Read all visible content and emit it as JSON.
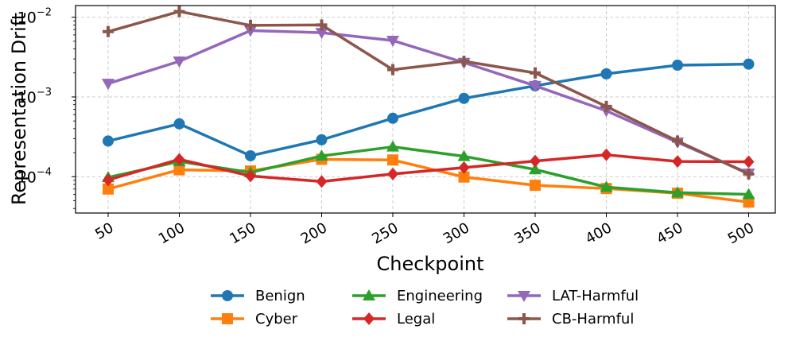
{
  "chart_data": {
    "type": "line",
    "title": "",
    "xlabel": "Checkpoint",
    "ylabel": "Representation Drift",
    "yscale": "log",
    "ylim": [
      3.5e-05,
      0.014
    ],
    "ytick_labels": [
      {
        "base": "10",
        "exp": "−2",
        "value": 0.01
      },
      {
        "base": "10",
        "exp": "−3",
        "value": 0.001
      },
      {
        "base": "10",
        "exp": "−4",
        "value": 0.0001
      }
    ],
    "categories": [
      "50",
      "100",
      "150",
      "200",
      "250",
      "300",
      "350",
      "400",
      "450",
      "500"
    ],
    "grid": true,
    "legend_position": "bottom-center",
    "series": [
      {
        "name": "Benign",
        "color": "#1f77b4",
        "marker": "circle",
        "values": [
          0.00028,
          0.00046,
          0.000183,
          0.00029,
          0.00054,
          0.00096,
          0.00138,
          0.00195,
          0.0025,
          0.00258
        ]
      },
      {
        "name": "Cyber",
        "color": "#ff7f0e",
        "marker": "square",
        "values": [
          7e-05,
          0.000122,
          0.000118,
          0.000165,
          0.000162,
          9.9e-05,
          7.8e-05,
          7.1e-05,
          6.2e-05,
          4.8e-05
        ]
      },
      {
        "name": "Engineering",
        "color": "#2ca02c",
        "marker": "triangle-up",
        "values": [
          9.8e-05,
          0.000155,
          0.000113,
          0.000182,
          0.000237,
          0.00018,
          0.000123,
          7.4e-05,
          6.3e-05,
          6e-05
        ]
      },
      {
        "name": "Legal",
        "color": "#d62728",
        "marker": "diamond",
        "values": [
          9.1e-05,
          0.000165,
          0.000102,
          8.7e-05,
          0.000108,
          0.00013,
          0.000157,
          0.000188,
          0.000155,
          0.000154
        ]
      },
      {
        "name": "LAT-Harmful",
        "color": "#9467bd",
        "marker": "triangle-down",
        "values": [
          0.00147,
          0.0028,
          0.0068,
          0.0064,
          0.0051,
          0.0027,
          0.00138,
          0.00067,
          0.00027,
          0.00011
        ]
      },
      {
        "name": "CB-Harmful",
        "color": "#8c564b",
        "marker": "plus",
        "values": [
          0.0066,
          0.0118,
          0.0079,
          0.008,
          0.0022,
          0.0028,
          0.002,
          0.00076,
          0.00028,
          0.000108
        ]
      }
    ]
  }
}
